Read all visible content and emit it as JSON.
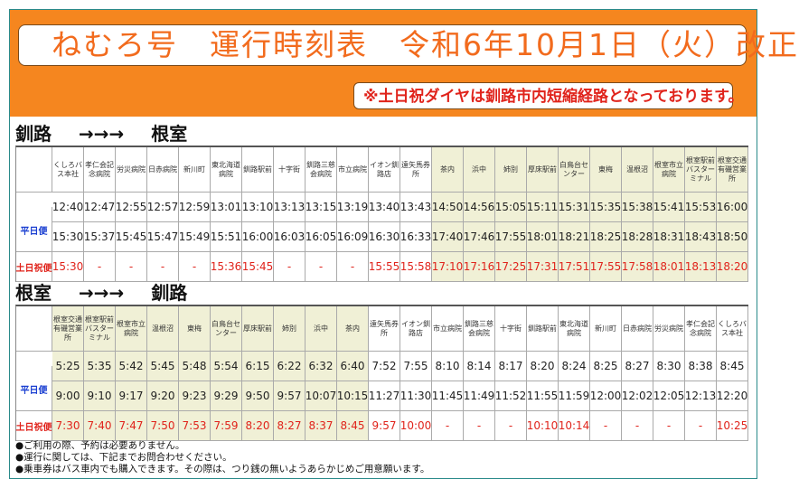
{
  "title": "ねむろ号　運行時刻表　令和6年10月1日（火）改正",
  "note": "※土日祝ダイヤは釧路市内短縮経路となっております。",
  "sections": [
    {
      "from": "釧路",
      "arrow": "→→→",
      "to": "根室",
      "stops": [
        "くしろバス本社",
        "孝仁会記念病院",
        "労災病院",
        "日赤病院",
        "新川町",
        "東北海道病院",
        "釧路駅前",
        "十字街",
        "釧路三慈会病院",
        "市立病院",
        "イオン釧路店",
        "遠矢馬券所",
        "茶内",
        "浜中",
        "姉別",
        "厚床駅前",
        "白鳥台センター",
        "東梅",
        "温根沼",
        "根室市立病院",
        "根室駅前バスターミナル",
        "根室交通有磯営業所"
      ],
      "rows": [
        {
          "label": "平日便",
          "times": [
            "12:40",
            "12:47",
            "12:55",
            "12:57",
            "12:59",
            "13:01",
            "13:10",
            "13:13",
            "13:15",
            "13:19",
            "13:40",
            "13:43",
            "14:50",
            "14:56",
            "15:05",
            "15:11",
            "15:31",
            "15:35",
            "15:38",
            "15:41",
            "15:53",
            "16:00"
          ]
        },
        {
          "label": "",
          "times": [
            "15:30",
            "15:37",
            "15:45",
            "15:47",
            "15:49",
            "15:51",
            "16:00",
            "16:03",
            "16:05",
            "16:09",
            "16:30",
            "16:33",
            "17:40",
            "17:46",
            "17:55",
            "18:01",
            "18:21",
            "18:25",
            "18:28",
            "18:31",
            "18:43",
            "18:50"
          ]
        },
        {
          "label": "土日祝便",
          "times": [
            "15:30",
            "-",
            "-",
            "-",
            "-",
            "15:36",
            "15:45",
            "-",
            "-",
            "-",
            "15:55",
            "15:58",
            "17:10",
            "17:16",
            "17:25",
            "17:31",
            "17:51",
            "17:55",
            "17:58",
            "18:01",
            "18:13",
            "18:20"
          ]
        }
      ]
    },
    {
      "from": "根室",
      "arrow": "→→→",
      "to": "釧路",
      "stops": [
        "根室交通有磯営業所",
        "根室駅前バスターミナル",
        "根室市立病院",
        "温根沼",
        "東梅",
        "白鳥台センター",
        "厚床駅前",
        "姉別",
        "浜中",
        "茶内",
        "遠矢馬券所",
        "イオン釧路店",
        "市立病院",
        "釧路三慈会病院",
        "十字街",
        "釧路駅前",
        "東北海道病院",
        "新川町",
        "日赤病院",
        "労災病院",
        "孝仁会記念病院",
        "くしろバス本社"
      ],
      "rows": [
        {
          "label": "平日便",
          "times": [
            "5:25",
            "5:35",
            "5:42",
            "5:45",
            "5:48",
            "5:54",
            "6:15",
            "6:22",
            "6:32",
            "6:40",
            "7:52",
            "7:55",
            "8:10",
            "8:14",
            "8:17",
            "8:20",
            "8:24",
            "8:25",
            "8:27",
            "8:30",
            "8:38",
            "8:45"
          ]
        },
        {
          "label": "",
          "times": [
            "9:00",
            "9:10",
            "9:17",
            "9:20",
            "9:23",
            "9:29",
            "9:50",
            "9:57",
            "10:07",
            "10:15",
            "11:27",
            "11:30",
            "11:45",
            "11:49",
            "11:52",
            "11:55",
            "11:59",
            "12:00",
            "12:02",
            "12:05",
            "12:13",
            "12:20"
          ]
        },
        {
          "label": "土日祝便",
          "times": [
            "7:30",
            "7:40",
            "7:47",
            "7:50",
            "7:53",
            "7:59",
            "8:20",
            "8:27",
            "8:37",
            "8:45",
            "9:57",
            "10:00",
            "-",
            "-",
            "-",
            "10:10",
            "10:14",
            "-",
            "-",
            "-",
            "-",
            "10:25"
          ]
        }
      ]
    }
  ],
  "footer": [
    "●ご利用の際、予約は必要ありません。",
    "●運行に関しては、下記までお問合わせください。",
    "●乗車券はバス車内でも購入できます。その際は、つり銭の無いようあらかじめご用意願います。"
  ],
  "colors": {
    "orange": "#f5861f",
    "title_text": "#f26b1d",
    "note_text": "#e0231b",
    "weekday_label": "#1a3fd1",
    "weekend_label": "#e0231b",
    "tint": "#f0f0d6"
  }
}
